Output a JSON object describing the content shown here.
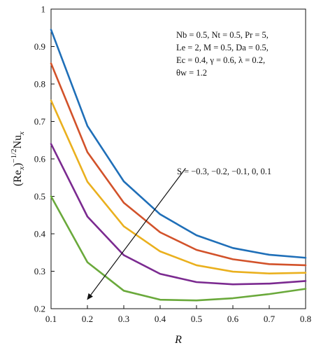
{
  "chart_data": {
    "type": "line",
    "ylabel_parts": {
      "base": "(Re",
      "sub1": "x",
      "sup": ")",
      "exp": "−1/2",
      "mid": "Nu",
      "sub2": "x"
    },
    "xlabel": "R",
    "x": [
      0.1,
      0.2,
      0.3,
      0.4,
      0.5,
      0.6,
      0.7,
      0.8
    ],
    "xlim": [
      0.1,
      0.8
    ],
    "ylim": [
      0.2,
      1.0
    ],
    "x_ticks": [
      "0.1",
      "0.2",
      "0.3",
      "0.4",
      "0.5",
      "0.6",
      "0.7",
      "0.8"
    ],
    "y_ticks": [
      "0.2",
      "0.3",
      "0.4",
      "0.5",
      "0.6",
      "0.7",
      "0.8",
      "0.9",
      "1"
    ],
    "grid": false,
    "series": [
      {
        "color": "#1f6fb8",
        "values": [
          0.945,
          0.688,
          0.54,
          0.452,
          0.396,
          0.362,
          0.344,
          0.336
        ]
      },
      {
        "color": "#d2522a",
        "values": [
          0.855,
          0.618,
          0.483,
          0.404,
          0.357,
          0.332,
          0.319,
          0.316
        ]
      },
      {
        "color": "#eab01e",
        "values": [
          0.756,
          0.539,
          0.42,
          0.353,
          0.316,
          0.299,
          0.294,
          0.296
        ]
      },
      {
        "color": "#7b2a90",
        "values": [
          0.64,
          0.446,
          0.343,
          0.293,
          0.271,
          0.265,
          0.267,
          0.274
        ]
      },
      {
        "color": "#6aa93b",
        "values": [
          0.5,
          0.324,
          0.248,
          0.224,
          0.222,
          0.228,
          0.239,
          0.253
        ]
      }
    ],
    "parameters": [
      "Nb = 0.5, Nt = 0.5, Pr = 5,",
      "Le = 2, M = 0.5, Da = 0.5,",
      "Ec = 0.4, γ = 0.6, λ = 0.2,",
      "θw = 1.2"
    ],
    "arrow_annotation": "S = −0.3, −0.2, −0.1, 0, 0.1",
    "arrow": {
      "from": [
        0.47,
        0.575
      ],
      "to": [
        0.2,
        0.225
      ]
    }
  }
}
